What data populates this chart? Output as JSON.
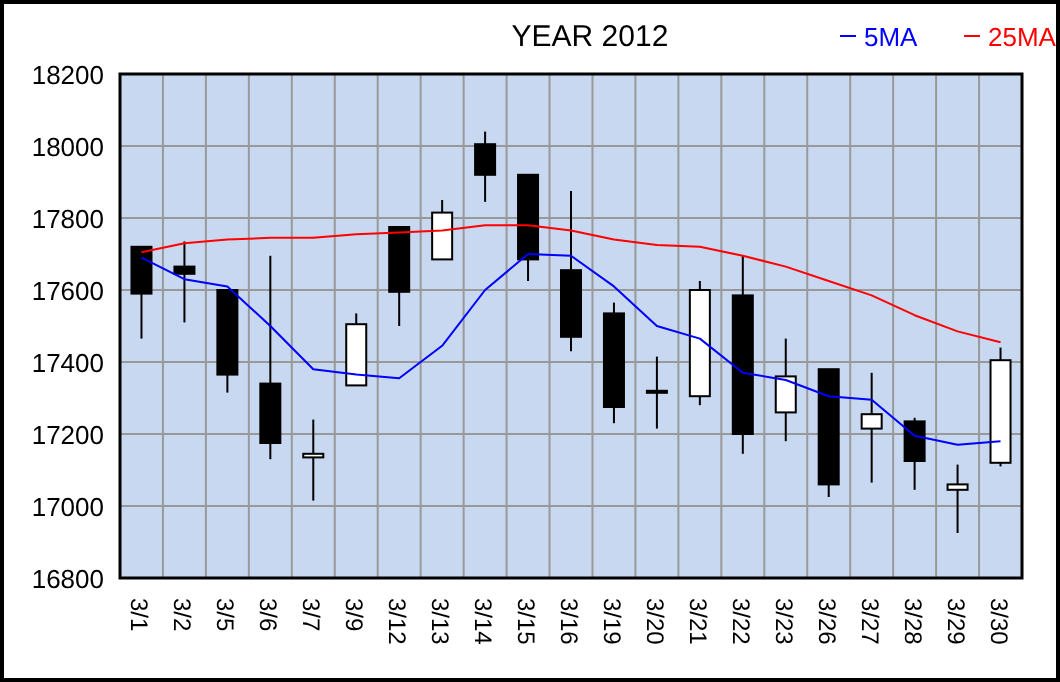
{
  "chart_data": {
    "type": "candlestick",
    "title": "YEAR 2012",
    "categories": [
      "3/1",
      "3/2",
      "3/5",
      "3/6",
      "3/7",
      "3/9",
      "3/12",
      "3/13",
      "3/14",
      "3/15",
      "3/16",
      "3/19",
      "3/20",
      "3/21",
      "3/22",
      "3/23",
      "3/26",
      "3/27",
      "3/28",
      "3/29",
      "3/30"
    ],
    "ohlc": [
      [
        17720,
        17720,
        17465,
        17590
      ],
      [
        17665,
        17735,
        17510,
        17645
      ],
      [
        17600,
        17600,
        17315,
        17365
      ],
      [
        17340,
        17695,
        17130,
        17175
      ],
      [
        17135,
        17240,
        17015,
        17145
      ],
      [
        17335,
        17535,
        17335,
        17505
      ],
      [
        17775,
        17775,
        17500,
        17595
      ],
      [
        17685,
        17850,
        17685,
        17815
      ],
      [
        18005,
        18040,
        17845,
        17920
      ],
      [
        17920,
        17920,
        17625,
        17685
      ],
      [
        17655,
        17875,
        17430,
        17470
      ],
      [
        17535,
        17565,
        17230,
        17275
      ],
      [
        17320,
        17415,
        17215,
        17320
      ],
      [
        17305,
        17625,
        17280,
        17600
      ],
      [
        17585,
        17695,
        17145,
        17200
      ],
      [
        17260,
        17465,
        17180,
        17360
      ],
      [
        17380,
        17380,
        17025,
        17060
      ],
      [
        17215,
        17370,
        17065,
        17255
      ],
      [
        17235,
        17245,
        17045,
        17125
      ],
      [
        17045,
        17115,
        16925,
        17060
      ],
      [
        17120,
        17440,
        17110,
        17405
      ]
    ],
    "series": [
      {
        "name": "5MA",
        "type": "line",
        "color": "#0000ff",
        "values": [
          17690,
          17630,
          17610,
          17500,
          17380,
          17365,
          17355,
          17445,
          17600,
          17700,
          17695,
          17610,
          17500,
          17465,
          17370,
          17350,
          17305,
          17295,
          17195,
          17170,
          17180
        ]
      },
      {
        "name": "25MA",
        "type": "line",
        "color": "#ff0000",
        "values": [
          17705,
          17730,
          17740,
          17745,
          17745,
          17755,
          17760,
          17765,
          17780,
          17780,
          17765,
          17740,
          17725,
          17720,
          17695,
          17665,
          17625,
          17585,
          17530,
          17485,
          17455
        ]
      }
    ],
    "ylim": [
      16800,
      18200
    ],
    "yticks": [
      16800,
      17000,
      17200,
      17400,
      17600,
      17800,
      18000,
      18200
    ],
    "grid": true,
    "legend": "top right"
  }
}
